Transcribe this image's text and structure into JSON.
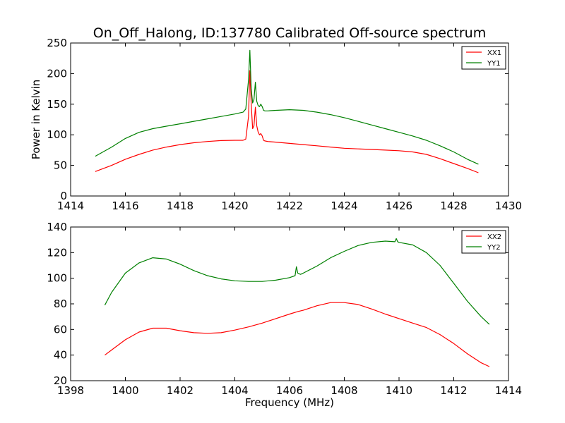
{
  "chart_data": [
    {
      "type": "line",
      "title": "On_Off_Halong, ID:137780 Calibrated Off-source spectrum",
      "xlabel": "",
      "ylabel": "Power in Kelvin",
      "xlim": [
        1414,
        1430
      ],
      "ylim": [
        0,
        250
      ],
      "xticks": [
        1414,
        1416,
        1418,
        1420,
        1422,
        1424,
        1426,
        1428,
        1430
      ],
      "yticks": [
        0,
        50,
        100,
        150,
        200,
        250
      ],
      "legend": "top-right",
      "grid": false,
      "series": [
        {
          "name": "XX1",
          "color": "#ff0000",
          "x": [
            1414.9,
            1415.5,
            1416.0,
            1416.5,
            1417.0,
            1417.5,
            1418.0,
            1418.5,
            1419.0,
            1419.5,
            1420.0,
            1420.3,
            1420.4,
            1420.5,
            1420.55,
            1420.6,
            1420.65,
            1420.7,
            1420.75,
            1420.8,
            1420.85,
            1420.9,
            1420.95,
            1421.0,
            1421.05,
            1421.1,
            1421.2,
            1421.5,
            1422.0,
            1422.5,
            1423.0,
            1423.5,
            1424.0,
            1424.5,
            1425.0,
            1425.5,
            1426.0,
            1426.5,
            1427.0,
            1427.5,
            1428.0,
            1428.5,
            1428.9
          ],
          "y": [
            40,
            50,
            60,
            68,
            75,
            80,
            84,
            87,
            89,
            90.5,
            91,
            91,
            93,
            130,
            205,
            150,
            110,
            115,
            145,
            115,
            105,
            100,
            102,
            98,
            91,
            90,
            89,
            88,
            86,
            84,
            82,
            80,
            78,
            77,
            76,
            75,
            74,
            72,
            68,
            61,
            53,
            45,
            38
          ]
        },
        {
          "name": "YY1",
          "color": "#008000",
          "x": [
            1414.9,
            1415.5,
            1416.0,
            1416.5,
            1417.0,
            1417.5,
            1418.0,
            1418.5,
            1419.0,
            1419.5,
            1420.0,
            1420.3,
            1420.4,
            1420.5,
            1420.55,
            1420.6,
            1420.65,
            1420.7,
            1420.75,
            1420.8,
            1420.85,
            1420.9,
            1420.95,
            1421.0,
            1421.05,
            1421.1,
            1421.2,
            1421.5,
            1422.0,
            1422.5,
            1423.0,
            1423.5,
            1424.0,
            1424.5,
            1425.0,
            1425.5,
            1426.0,
            1426.5,
            1427.0,
            1427.5,
            1428.0,
            1428.5,
            1428.9
          ],
          "y": [
            65,
            80,
            94,
            104,
            110,
            114,
            118,
            122,
            126,
            130,
            134,
            137,
            142,
            190,
            238,
            175,
            152,
            158,
            186,
            155,
            148,
            146,
            150,
            146,
            140,
            139,
            139,
            140,
            141,
            140,
            137,
            133,
            128,
            122,
            116,
            110,
            104,
            98,
            91,
            82,
            72,
            60,
            52
          ]
        }
      ]
    },
    {
      "type": "line",
      "title": "",
      "xlabel": "Frequency (MHz)",
      "ylabel": "",
      "xlim": [
        1398,
        1414
      ],
      "ylim": [
        20,
        140
      ],
      "xticks": [
        1398,
        1400,
        1402,
        1404,
        1406,
        1408,
        1410,
        1412,
        1414
      ],
      "yticks": [
        20,
        40,
        60,
        80,
        100,
        120,
        140
      ],
      "legend": "top-right",
      "grid": false,
      "series": [
        {
          "name": "XX2",
          "color": "#ff0000",
          "x": [
            1399.25,
            1399.5,
            1400.0,
            1400.5,
            1401.0,
            1401.5,
            1402.0,
            1402.5,
            1403.0,
            1403.5,
            1404.0,
            1404.5,
            1405.0,
            1405.5,
            1406.0,
            1406.3,
            1406.5,
            1407.0,
            1407.5,
            1408.0,
            1408.5,
            1409.0,
            1409.5,
            1410.0,
            1410.5,
            1411.0,
            1411.5,
            1412.0,
            1412.5,
            1413.0,
            1413.3
          ],
          "y": [
            40,
            44,
            52,
            58,
            61,
            61,
            59,
            57.5,
            57,
            57.5,
            59.5,
            62,
            65,
            68.5,
            72,
            74,
            75,
            78.5,
            81,
            81,
            79.5,
            76,
            72,
            68.5,
            65,
            61.5,
            56,
            49,
            41,
            34,
            31
          ]
        },
        {
          "name": "YY2",
          "color": "#008000",
          "x": [
            1399.25,
            1399.5,
            1400.0,
            1400.5,
            1401.0,
            1401.5,
            1402.0,
            1402.5,
            1403.0,
            1403.5,
            1404.0,
            1404.5,
            1405.0,
            1405.5,
            1406.0,
            1406.2,
            1406.25,
            1406.3,
            1406.4,
            1406.5,
            1407.0,
            1407.5,
            1408.0,
            1408.5,
            1409.0,
            1409.5,
            1409.85,
            1409.9,
            1409.95,
            1410.0,
            1410.5,
            1411.0,
            1411.5,
            1412.0,
            1412.5,
            1413.0,
            1413.3
          ],
          "y": [
            79,
            89,
            104,
            112,
            116,
            115,
            111,
            106,
            102,
            99.5,
            98,
            97.5,
            97.5,
            98.5,
            100.5,
            102,
            109,
            104,
            103,
            104,
            109.5,
            116,
            121,
            125.5,
            128,
            129,
            128.5,
            131,
            128.5,
            128,
            126,
            120,
            110,
            96,
            82,
            70,
            64
          ]
        }
      ]
    }
  ]
}
